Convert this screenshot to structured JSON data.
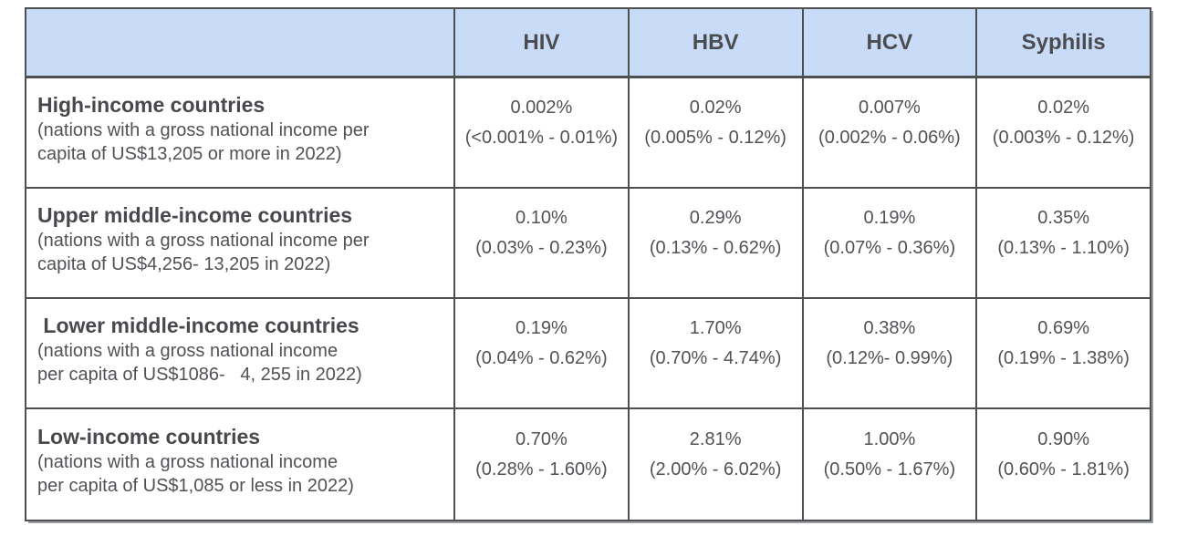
{
  "colors": {
    "header_bg": "#c9dcf7",
    "border": "#4e4f51",
    "text": "#4e4f52"
  },
  "chart_data": {
    "type": "table",
    "columns": [
      "",
      "HIV",
      "HBV",
      "HCV",
      "Syphilis"
    ],
    "rows": [
      {
        "title": "High-income countries",
        "description": "(nations with a gross national income per\ncapita of US$13,205 or more in 2022)",
        "cells": [
          {
            "estimate": "0.002%",
            "range": "(<0.001% - 0.01%)"
          },
          {
            "estimate": "0.02%",
            "range": "(0.005% - 0.12%)"
          },
          {
            "estimate": "0.007%",
            "range": "(0.002% - 0.06%)"
          },
          {
            "estimate": "0.02%",
            "range": "(0.003% - 0.12%)"
          }
        ]
      },
      {
        "title": "Upper middle-income countries",
        "description": "(nations with a gross national income per\ncapita of US$4,256- 13,205 in 2022)",
        "cells": [
          {
            "estimate": "0.10%",
            "range": "(0.03% - 0.23%)"
          },
          {
            "estimate": "0.29%",
            "range": "(0.13% - 0.62%)"
          },
          {
            "estimate": "0.19%",
            "range": "(0.07% - 0.36%)"
          },
          {
            "estimate": "0.35%",
            "range": "(0.13% - 1.10%)"
          }
        ]
      },
      {
        "title": " Lower middle-income countries",
        "description": "(nations with a gross national income\nper capita of US$1086-   4, 255 in 2022)",
        "cells": [
          {
            "estimate": "0.19%",
            "range": "(0.04% - 0.62%)"
          },
          {
            "estimate": "1.70%",
            "range": "(0.70% - 4.74%)"
          },
          {
            "estimate": "0.38%",
            "range": "(0.12%- 0.99%)"
          },
          {
            "estimate": "0.69%",
            "range": "(0.19% - 1.38%)"
          }
        ]
      },
      {
        "title": "Low-income countries",
        "description": "(nations with a gross national income\nper capita of US$1,085 or less in 2022)",
        "cells": [
          {
            "estimate": "0.70%",
            "range": "(0.28% - 1.60%)"
          },
          {
            "estimate": "2.81%",
            "range": "(2.00% - 6.02%)"
          },
          {
            "estimate": "1.00%",
            "range": "(0.50% - 1.67%)"
          },
          {
            "estimate": "0.90%",
            "range": "(0.60% - 1.81%)"
          }
        ]
      }
    ]
  }
}
